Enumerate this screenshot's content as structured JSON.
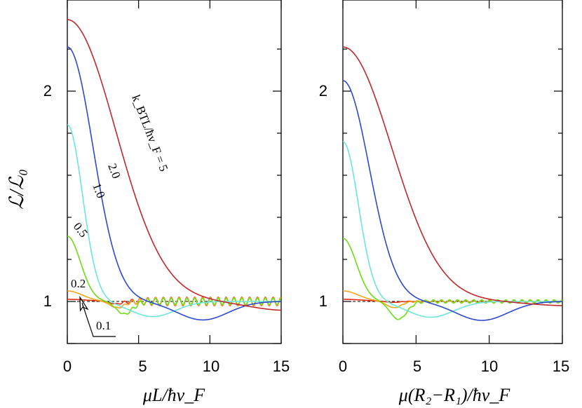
{
  "chart_data": [
    {
      "type": "line",
      "panel": "left",
      "xlabel": "μL/ħv_F",
      "ylabel": "ℒ/ℒ₀",
      "xlim": [
        0,
        15
      ],
      "ylim": [
        0.8,
        2.35
      ],
      "xticks": [
        "0",
        "5",
        "10",
        "15"
      ],
      "yticks": [
        "1",
        "2"
      ],
      "reference_line": {
        "y": 1,
        "style": "dashed"
      },
      "series": [
        {
          "name": "5",
          "color": "#c0282d",
          "peak": 2.34,
          "width": 4.8,
          "dip": 0.042,
          "dip_x": 15.3,
          "dip_w": 3.5,
          "oscillation": 0
        },
        {
          "name": "2.0",
          "color": "#2e49d0",
          "peak": 2.21,
          "width": 2.55,
          "dip": 0.088,
          "dip_x": 9.5,
          "dip_w": 2.5,
          "oscillation": 0
        },
        {
          "name": "1.0",
          "color": "#6de6d6",
          "peak": 1.84,
          "width": 1.5,
          "dip": 0.072,
          "dip_x": 6.0,
          "dip_w": 2.2,
          "oscillation": 0
        },
        {
          "name": "0.5",
          "color": "#6edc14",
          "peak": 1.31,
          "width": 1.3,
          "dip": 0.06,
          "dip_x": 4.0,
          "dip_w": 0.8,
          "oscillation": 0.015
        },
        {
          "name": "0.2",
          "color": "#f3a51f",
          "peak": 1.05,
          "width": 1.5,
          "dip": 0.03,
          "dip_x": 3.5,
          "dip_w": 0.7,
          "oscillation": 0.018
        },
        {
          "name": "0.1",
          "color": "#e8290e",
          "peak": 1.01,
          "width": 2.0,
          "dip": 0.012,
          "dip_x": 3.4,
          "dip_w": 0.6,
          "oscillation": 0.02
        }
      ],
      "annotations": {
        "kbt_prefix": "k_BTL/ħv_F = ",
        "label_5": "5",
        "label_2": "2.0",
        "label_1": "1.0",
        "label_05": "0.5",
        "label_02": "0.2",
        "label_01": "0.1"
      }
    },
    {
      "type": "line",
      "panel": "right",
      "xlabel": "μ(R₂−R₁)/ħv_F",
      "xlim": [
        0,
        15
      ],
      "ylim": [
        0.8,
        2.35
      ],
      "xticks": [
        "0",
        "5",
        "10",
        "15"
      ],
      "yticks": [
        "1",
        "2"
      ],
      "reference_line": {
        "y": 1,
        "style": "dashed"
      },
      "series": [
        {
          "name": "5",
          "color": "#c0282d",
          "peak": 2.21,
          "width": 4.7,
          "dip": 0.02,
          "dip_x": 15.3,
          "dip_w": 3.5,
          "oscillation": 0
        },
        {
          "name": "2.0",
          "color": "#2e49d0",
          "peak": 2.05,
          "width": 2.55,
          "dip": 0.09,
          "dip_x": 9.5,
          "dip_w": 2.5,
          "oscillation": 0
        },
        {
          "name": "1.0",
          "color": "#6de6d6",
          "peak": 1.76,
          "width": 1.5,
          "dip": 0.075,
          "dip_x": 6.0,
          "dip_w": 2.2,
          "oscillation": 0
        },
        {
          "name": "0.5",
          "color": "#6edc14",
          "peak": 1.3,
          "width": 1.3,
          "dip": 0.085,
          "dip_x": 3.8,
          "dip_w": 0.8,
          "oscillation": 0.008
        },
        {
          "name": "0.2",
          "color": "#f3a51f",
          "peak": 1.05,
          "width": 1.5,
          "dip": 0.03,
          "dip_x": 3.5,
          "dip_w": 0.7,
          "oscillation": 0.005
        },
        {
          "name": "0.1",
          "color": "#e8290e",
          "peak": 1.01,
          "width": 2.0,
          "dip": 0.005,
          "dip_x": 3.4,
          "dip_w": 0.6,
          "oscillation": 0.003
        }
      ]
    }
  ]
}
